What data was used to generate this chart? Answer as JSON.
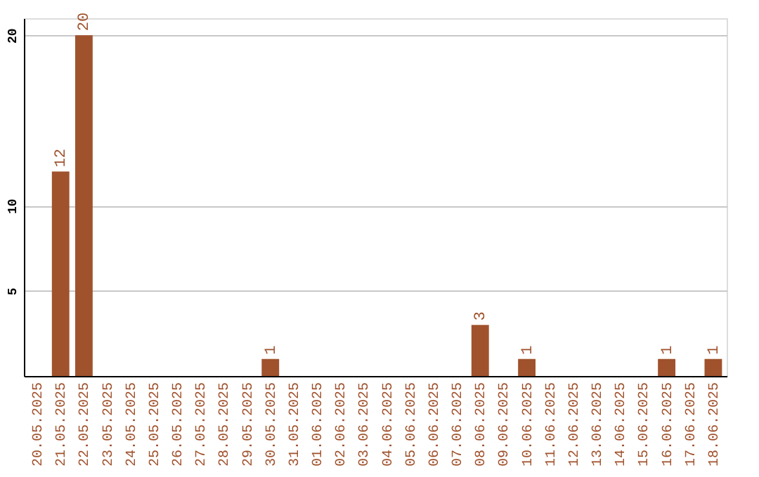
{
  "chart_data": {
    "type": "bar",
    "categories": [
      "20.05.2025",
      "21.05.2025",
      "22.05.2025",
      "23.05.2025",
      "24.05.2025",
      "25.05.2025",
      "26.05.2025",
      "27.05.2025",
      "28.05.2025",
      "29.05.2025",
      "30.05.2025",
      "31.05.2025",
      "01.06.2025",
      "02.06.2025",
      "03.06.2025",
      "04.06.2025",
      "05.06.2025",
      "06.06.2025",
      "07.06.2025",
      "08.06.2025",
      "09.06.2025",
      "10.06.2025",
      "11.06.2025",
      "12.06.2025",
      "13.06.2025",
      "14.06.2025",
      "15.06.2025",
      "16.06.2025",
      "17.06.2025",
      "18.06.2025"
    ],
    "values": [
      0,
      12,
      20,
      0,
      0,
      0,
      0,
      0,
      0,
      0,
      1,
      0,
      0,
      0,
      0,
      0,
      0,
      0,
      0,
      3,
      0,
      1,
      0,
      0,
      0,
      0,
      0,
      1,
      0,
      1
    ],
    "value_labels": [
      null,
      "12",
      "20",
      null,
      null,
      null,
      null,
      null,
      null,
      null,
      "1",
      null,
      null,
      null,
      null,
      null,
      null,
      null,
      null,
      "3",
      null,
      "1",
      null,
      null,
      null,
      null,
      null,
      "1",
      null,
      "1"
    ],
    "color": "#a0522d",
    "ylim": [
      0,
      21
    ],
    "yticks": [
      5,
      10,
      20
    ],
    "grid": "y"
  }
}
